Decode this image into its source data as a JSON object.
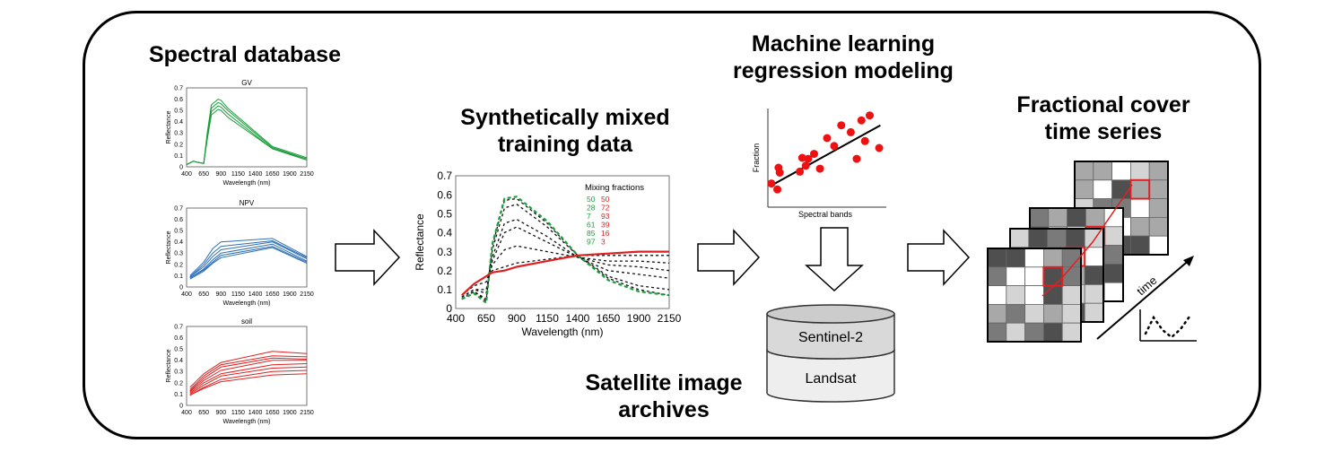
{
  "headings": {
    "spectral_database": "Spectral database",
    "synthetic_line1": "Synthetically mixed",
    "synthetic_line2": "training data",
    "ml_line1": "Machine learning",
    "ml_line2": "regression modeling",
    "satellite_line1": "Satellite image",
    "satellite_line2": "archives",
    "fractional_line1": "Fractional cover",
    "fractional_line2": "time series"
  },
  "small_charts": {
    "ylabel": "Reflectance",
    "xlabel": "Wavelength (nm)",
    "yticks": [
      "0.7",
      "0.6",
      "0.5",
      "0.4",
      "0.3",
      "0.2",
      "0.1",
      "0"
    ],
    "xticks": [
      "400",
      "650",
      "900",
      "1150",
      "1400",
      "1650",
      "1900",
      "2150"
    ],
    "titles": [
      "GV",
      "NPV",
      "soil"
    ]
  },
  "mixed_chart": {
    "ylabel": "Reflectance",
    "xlabel": "Wavelength (nm)",
    "yticks": [
      "0.7",
      "0.6",
      "0.5",
      "0.4",
      "0.3",
      "0.2",
      "0.1",
      "0"
    ],
    "xticks": [
      "400",
      "650",
      "900",
      "1150",
      "1400",
      "1650",
      "1900",
      "2150"
    ],
    "legend_title": "Mixing fractions",
    "fractions_green": [
      "50",
      "28",
      "7",
      "61",
      "85",
      "97"
    ],
    "fractions_red": [
      "50",
      "72",
      "93",
      "39",
      "16",
      "3"
    ]
  },
  "ml_chart": {
    "ylabel": "Fraction",
    "xlabel": "Spectral bands"
  },
  "satellites": {
    "top": "Sentinel-2",
    "bottom": "Landsat"
  },
  "time_label": "time",
  "colors": {
    "gv": "#1a9e3a",
    "npv": "#2e6fb7",
    "soil": "#e02020",
    "scatter": "#ee1111",
    "highlight": "#e02020"
  },
  "chart_data": [
    {
      "type": "line",
      "title": "GV",
      "xlabel": "Wavelength (nm)",
      "ylabel": "Reflectance",
      "xlim": [
        400,
        2150
      ],
      "ylim": [
        0,
        0.7
      ],
      "x": [
        400,
        500,
        560,
        650,
        700,
        760,
        860,
        900,
        1000,
        1650,
        2150
      ],
      "series": [
        {
          "values": [
            0.02,
            0.05,
            0.04,
            0.03,
            0.3,
            0.55,
            0.6,
            0.59,
            0.52,
            0.18,
            0.08
          ]
        },
        {
          "values": [
            0.02,
            0.05,
            0.04,
            0.03,
            0.28,
            0.52,
            0.57,
            0.56,
            0.5,
            0.17,
            0.07
          ]
        },
        {
          "values": [
            0.02,
            0.05,
            0.04,
            0.03,
            0.26,
            0.49,
            0.54,
            0.53,
            0.47,
            0.16,
            0.07
          ]
        },
        {
          "values": [
            0.02,
            0.05,
            0.04,
            0.03,
            0.24,
            0.46,
            0.51,
            0.5,
            0.44,
            0.16,
            0.06
          ]
        }
      ]
    },
    {
      "type": "line",
      "title": "NPV",
      "xlabel": "Wavelength (nm)",
      "ylabel": "Reflectance",
      "xlim": [
        400,
        2150
      ],
      "ylim": [
        0,
        0.7
      ],
      "x": [
        450,
        650,
        780,
        900,
        1650,
        2150
      ],
      "series": [
        {
          "values": [
            0.1,
            0.22,
            0.34,
            0.4,
            0.43,
            0.27
          ]
        },
        {
          "values": [
            0.09,
            0.2,
            0.3,
            0.36,
            0.41,
            0.26
          ]
        },
        {
          "values": [
            0.09,
            0.18,
            0.27,
            0.33,
            0.4,
            0.25
          ]
        },
        {
          "values": [
            0.08,
            0.16,
            0.24,
            0.3,
            0.38,
            0.23
          ]
        },
        {
          "values": [
            0.08,
            0.15,
            0.22,
            0.28,
            0.36,
            0.22
          ]
        },
        {
          "values": [
            0.07,
            0.14,
            0.21,
            0.26,
            0.35,
            0.21
          ]
        }
      ]
    },
    {
      "type": "line",
      "title": "soil",
      "xlabel": "Wavelength (nm)",
      "ylabel": "Reflectance",
      "xlim": [
        400,
        2150
      ],
      "ylim": [
        0,
        0.7
      ],
      "x": [
        450,
        650,
        900,
        1650,
        2150
      ],
      "series": [
        {
          "values": [
            0.16,
            0.28,
            0.38,
            0.48,
            0.46
          ]
        },
        {
          "values": [
            0.14,
            0.26,
            0.36,
            0.44,
            0.43
          ]
        },
        {
          "values": [
            0.13,
            0.24,
            0.34,
            0.42,
            0.41
          ]
        },
        {
          "values": [
            0.12,
            0.22,
            0.31,
            0.4,
            0.4
          ]
        },
        {
          "values": [
            0.11,
            0.2,
            0.28,
            0.36,
            0.37
          ]
        },
        {
          "values": [
            0.1,
            0.18,
            0.26,
            0.33,
            0.34
          ]
        },
        {
          "values": [
            0.09,
            0.16,
            0.23,
            0.3,
            0.31
          ]
        },
        {
          "values": [
            0.09,
            0.15,
            0.21,
            0.27,
            0.28
          ]
        }
      ]
    },
    {
      "type": "line",
      "title": "",
      "xlabel": "Wavelength (nm)",
      "ylabel": "Reflectance",
      "xlim": [
        400,
        2150
      ],
      "ylim": [
        0,
        0.7
      ],
      "legend_title": "Mixing fractions",
      "x": [
        450,
        550,
        650,
        700,
        800,
        900,
        1150,
        1400,
        1650,
        1900,
        2150
      ],
      "series": [
        {
          "name": "50 50",
          "values": [
            0.06,
            0.1,
            0.1,
            0.25,
            0.4,
            0.43,
            0.35,
            0.27,
            0.23,
            0.22,
            0.2
          ]
        },
        {
          "name": "28 72",
          "values": [
            0.07,
            0.12,
            0.14,
            0.23,
            0.31,
            0.33,
            0.3,
            0.27,
            0.25,
            0.25,
            0.24
          ]
        },
        {
          "name": "7 93",
          "values": [
            0.07,
            0.13,
            0.17,
            0.2,
            0.22,
            0.24,
            0.26,
            0.28,
            0.28,
            0.28,
            0.28
          ]
        },
        {
          "name": "61 39",
          "values": [
            0.06,
            0.1,
            0.08,
            0.27,
            0.45,
            0.47,
            0.38,
            0.27,
            0.2,
            0.18,
            0.16
          ]
        },
        {
          "name": "85 16",
          "values": [
            0.05,
            0.09,
            0.05,
            0.31,
            0.53,
            0.55,
            0.43,
            0.28,
            0.17,
            0.12,
            0.1
          ]
        },
        {
          "name": "97 3",
          "values": [
            0.05,
            0.09,
            0.04,
            0.33,
            0.57,
            0.58,
            0.45,
            0.28,
            0.16,
            0.1,
            0.07
          ]
        },
        {
          "name": "GV",
          "values": [
            0.05,
            0.08,
            0.03,
            0.34,
            0.58,
            0.59,
            0.46,
            0.28,
            0.15,
            0.09,
            0.07
          ]
        },
        {
          "name": "soil",
          "values": [
            0.07,
            0.13,
            0.17,
            0.19,
            0.2,
            0.22,
            0.25,
            0.28,
            0.29,
            0.3,
            0.3
          ]
        }
      ]
    },
    {
      "type": "scatter",
      "xlabel": "Spectral bands",
      "ylabel": "Fraction",
      "xlim": [
        0,
        10
      ],
      "ylim": [
        0,
        10
      ],
      "x": [
        0.3,
        0.8,
        1.0,
        0.9,
        2.7,
        2.9,
        3.4,
        3.2,
        3.9,
        4.4,
        5.0,
        5.6,
        6.2,
        7.0,
        7.5,
        7.9,
        8.2,
        8.6,
        9.4
      ],
      "y": [
        2.4,
        1.8,
        3.5,
        4.0,
        3.6,
        5.0,
        4.9,
        4.2,
        5.4,
        3.9,
        7.0,
        6.2,
        8.3,
        7.6,
        4.9,
        8.8,
        6.7,
        9.3,
        6.0
      ],
      "trend": [
        [
          0.3,
          2.2
        ],
        [
          9.5,
          8.3
        ]
      ]
    }
  ]
}
